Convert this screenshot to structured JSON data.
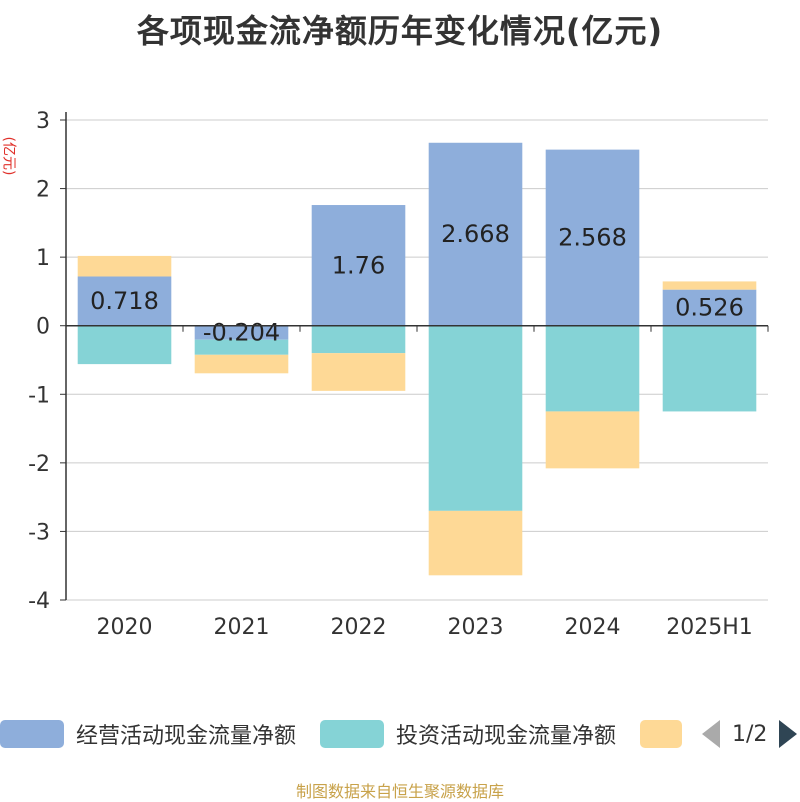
{
  "title": "各项现金流净额历年变化情况(亿元)",
  "y_unit": "(亿元)",
  "source": "制图数据来自恒生聚源数据库",
  "legend": {
    "items": [
      {
        "label": "经营活动现金流量净额",
        "color": "#8eaedb"
      },
      {
        "label": "投资活动现金流量净额",
        "color": "#85d3d6"
      },
      {
        "label": "",
        "color": "#fed996"
      }
    ],
    "page": "1/2"
  },
  "chart_data": {
    "type": "bar",
    "stacked": true,
    "categories": [
      "2020",
      "2021",
      "2022",
      "2023",
      "2024",
      "2025H1"
    ],
    "series": [
      {
        "name": "经营活动现金流量净额",
        "color": "#8eaedb",
        "values": [
          0.718,
          -0.204,
          1.76,
          2.668,
          2.568,
          0.526
        ],
        "labels": [
          "0.718",
          "-0.204",
          "1.76",
          "2.668",
          "2.568",
          "0.526"
        ]
      },
      {
        "name": "投资活动现金流量净额",
        "color": "#85d3d6",
        "values": [
          -0.56,
          -0.22,
          -0.4,
          -2.7,
          -1.25,
          -1.25
        ]
      },
      {
        "name": "",
        "color": "#fed996",
        "values": [
          0.3,
          -0.27,
          -0.55,
          -0.94,
          -0.83,
          0.12
        ]
      }
    ],
    "ylim": [
      -4,
      3
    ],
    "yticks": [
      3,
      2,
      1,
      0,
      -1,
      -2,
      -3,
      -4
    ],
    "grid": true
  }
}
